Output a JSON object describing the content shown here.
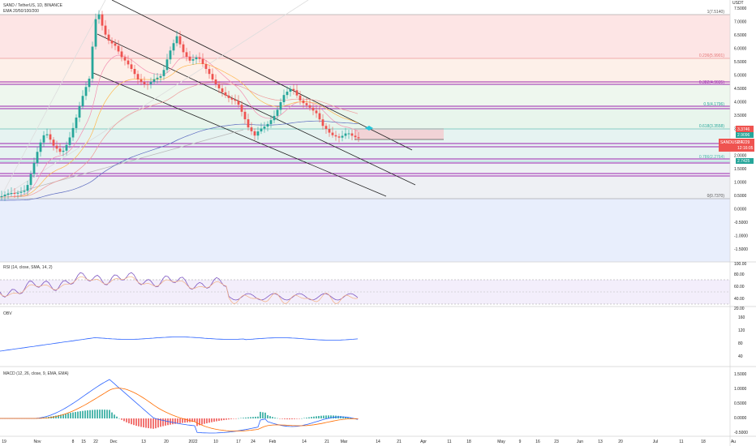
{
  "header": {
    "symbol_line": "SAND / TetherUS, 1D, BINANCE",
    "ema_line": "EMA 20/50/100/200"
  },
  "price_axis": {
    "currency": "USDT",
    "labels": [
      "7.5000",
      "7.0000",
      "6.5000",
      "6.0000",
      "5.5000",
      "5.0000",
      "4.5000",
      "4.0000",
      "3.5000",
      "3.0000",
      "2.5000",
      "2.0000",
      "1.5000",
      "1.0000",
      "0.5000",
      "0.0000",
      "-0.5000",
      "-1.0000",
      "-1.5000"
    ]
  },
  "fib_labels": [
    "1(7.5140)",
    "0.236(5.9901)",
    "0.382(4.9035)",
    "0.5(4.1796)",
    "0.618(3.3558)",
    "0.786(2.2764)",
    "0(0.7370)"
  ],
  "price_badges": {
    "ema_upper": "3.3746",
    "ema_lower": "2.9096",
    "ticker": "SANDUSDT",
    "last_price": "2.4229",
    "countdown": "12:16:05",
    "lower_level": "2.7425"
  },
  "time_axis": {
    "labels": [
      "19",
      "Nov",
      "8",
      "15",
      "22",
      "Dec",
      "13",
      "20",
      "2022",
      "10",
      "17",
      "24",
      "Feb",
      "14",
      "21",
      "Mar",
      "14",
      "21",
      "Apr",
      "11",
      "18",
      "May",
      "9",
      "16",
      "23",
      "Jun",
      "13",
      "20",
      "Jul",
      "11",
      "18",
      "Au"
    ]
  },
  "rsi": {
    "title": "RSI (14, close, SMA, 14, 2)",
    "axis": [
      "100.00",
      "80.00",
      "60.00",
      "40.00",
      "20.00"
    ]
  },
  "obv": {
    "title": "OBV",
    "axis": [
      "160",
      "120",
      "80",
      "40"
    ]
  },
  "macd": {
    "title": "MACD (12, 26, close, 9, EMA, EMA)",
    "axis": [
      "1.5000",
      "1.0000",
      "0.5000",
      "0.0000",
      "-0.5000"
    ]
  },
  "colors": {
    "up": "#26a69a",
    "down": "#ef5350",
    "purple_level": "#9c27b0",
    "rsi_line": "#7e57c2",
    "obv_line": "#2962ff",
    "macd_line": "#2962ff",
    "signal_line": "#ff6d00"
  }
}
